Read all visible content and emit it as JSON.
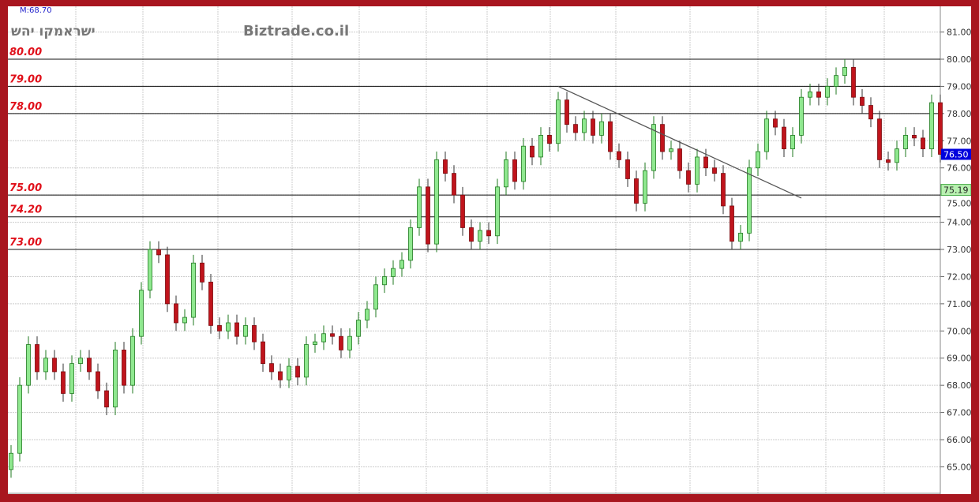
{
  "header": {
    "symbol": "ישראמקו יהש",
    "brand": "Biztrade.co.il",
    "m_value": "M:68.70"
  },
  "colors": {
    "frame": "#a8161f",
    "up_fill": "#8fe88f",
    "up_stroke": "#1f7a1f",
    "down_fill": "#c0141c",
    "down_stroke": "#7a0a0e",
    "level_label": "#e0101a",
    "last_price_bg": "#0000dd",
    "marker_bg": "#b8f0b0"
  },
  "chart_data": {
    "type": "candlestick",
    "title": "",
    "ylim": [
      64.5,
      81.9
    ],
    "y_ticks": [
      "65.00",
      "66.00",
      "67.00",
      "68.00",
      "69.00",
      "70.00",
      "71.00",
      "72.00",
      "73.00",
      "74.00",
      "75.00",
      "76.00",
      "77.00",
      "78.00",
      "79.00",
      "80.00",
      "81.00"
    ],
    "grid": true,
    "first_open": 64.9,
    "closes": [
      65.5,
      68,
      69.5,
      68.5,
      69,
      68.5,
      67.7,
      68.8,
      69,
      68.5,
      67.8,
      67.2,
      69.3,
      68,
      69.8,
      71.5,
      73,
      72.8,
      71,
      70.3,
      70.5,
      72.5,
      71.8,
      70.2,
      70,
      70.3,
      69.8,
      70.2,
      69.6,
      68.8,
      68.5,
      68.2,
      68.7,
      68.3,
      69.5,
      69.6,
      69.9,
      69.8,
      69.3,
      69.8,
      70.4,
      70.8,
      71.7,
      72,
      72.3,
      72.6,
      73.8,
      75.3,
      73.2,
      76.3,
      75.8,
      75,
      73.8,
      73.3,
      73.7,
      73.5,
      75.3,
      76.3,
      75.5,
      76.8,
      76.4,
      77.2,
      76.9,
      78.5,
      77.6,
      77.3,
      77.8,
      77.2,
      77.7,
      76.6,
      76.3,
      75.6,
      74.7,
      75.9,
      77.6,
      76.6,
      76.7,
      75.9,
      75.4,
      76.4,
      76,
      75.8,
      74.6,
      73.3,
      73.6,
      76,
      76.6,
      77.8,
      77.5,
      76.7,
      77.2,
      78.6,
      78.8,
      78.6,
      79,
      79.4,
      79.7,
      78.6,
      78.3,
      77.8,
      76.3,
      76.2,
      76.7,
      77.2,
      77.1,
      76.7,
      78.4,
      76.5
    ],
    "levels": [
      {
        "price": 80.0,
        "label": "80.00"
      },
      {
        "price": 79.0,
        "label": "79.00"
      },
      {
        "price": 78.0,
        "label": "78.00"
      },
      {
        "price": 75.0,
        "label": "75.00"
      },
      {
        "price": 74.2,
        "label": "74.20"
      },
      {
        "price": 73.0,
        "label": "73.00"
      }
    ],
    "trendline": {
      "start": {
        "candle": 63,
        "price": 79.0
      },
      "end": {
        "candle": 91,
        "price": 74.89
      }
    },
    "last_price": {
      "price": 76.5,
      "label": "76.50"
    },
    "marker": {
      "price": 75.19,
      "label": "75.19"
    }
  }
}
